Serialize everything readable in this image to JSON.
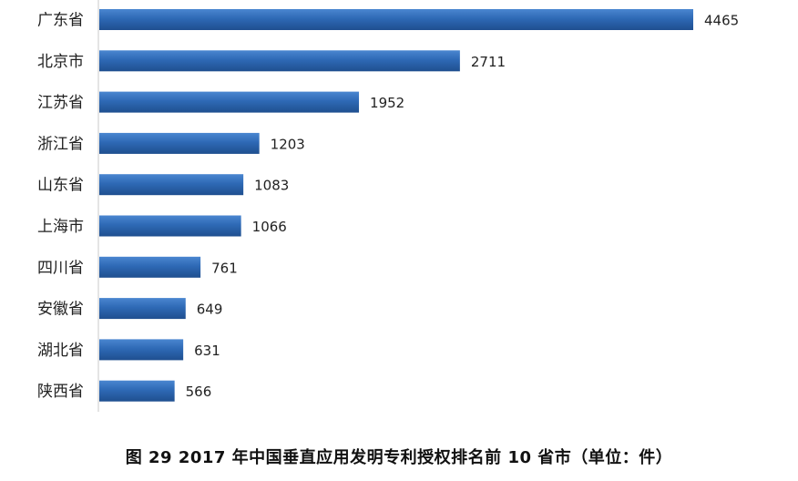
{
  "caption": "图 29 2017 年中国垂直应用发明专利授权排名前 10 省市（单位：件）",
  "colors": {
    "bar": "#2e69b5",
    "bar_highlight": "#4a86d0",
    "bar_shadow": "#1f4f8f",
    "axis": "#c8c8c8"
  },
  "chart_data": {
    "type": "bar",
    "orientation": "horizontal",
    "title": "图 29 2017 年中国垂直应用发明专利授权排名前 10 省市（单位：件）",
    "categories": [
      "广东省",
      "北京市",
      "江苏省",
      "浙江省",
      "山东省",
      "上海市",
      "四川省",
      "安徽省",
      "湖北省",
      "陕西省"
    ],
    "values": [
      4465,
      2711,
      1952,
      1203,
      1083,
      1066,
      761,
      649,
      631,
      566
    ],
    "data_labels": [
      "4465",
      "2711",
      "1952",
      "1203",
      "1083",
      "1066",
      "761",
      "649",
      "631",
      "566"
    ],
    "xlim": [
      0,
      4465
    ],
    "grid": false,
    "legend": "none"
  }
}
